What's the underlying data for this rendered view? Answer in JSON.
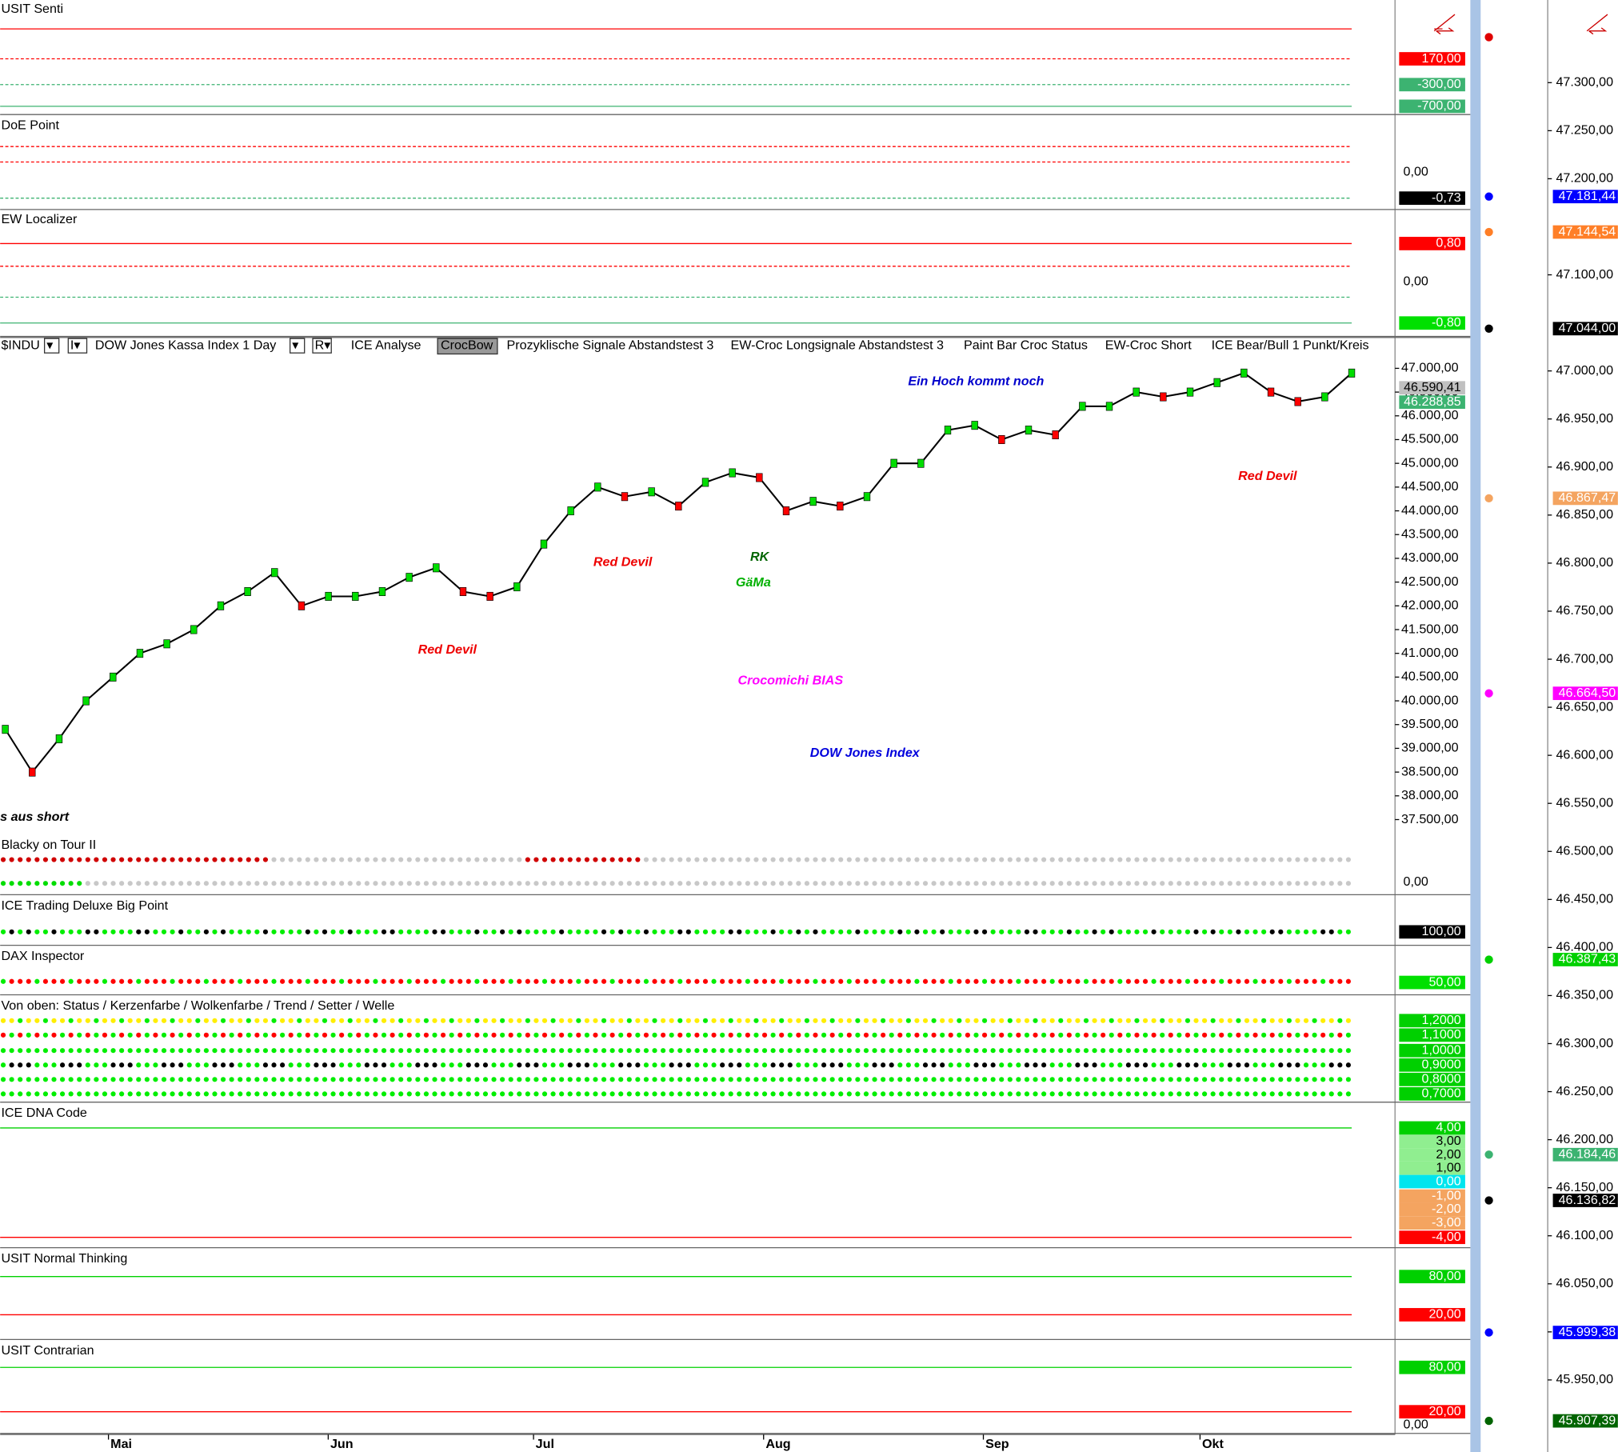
{
  "toolbar": [
    "$INDU",
    "▾",
    "I▾",
    "DOW Jones Kassa Index  1 Day",
    "▾",
    "R▾",
    "ICE Analyse",
    "CrocBow",
    "Prozyklische Signale Abstandstest 3",
    "EW-Croc Longsignale Abstandstest 3",
    "Paint Bar Croc Status",
    "EW-Croc Short",
    "ICE Bear/Bull 1 Punkt/Kreis"
  ],
  "panels": [
    {
      "title": "USIT Senti",
      "labels": [
        {
          "text": "170,00",
          "color": "#ff0000"
        },
        {
          "text": "-300,00",
          "color": "#3cb371"
        },
        {
          "text": "-700,00",
          "color": "#3cb371"
        }
      ]
    },
    {
      "title": "DoE Point",
      "labels": [
        {
          "text": "0,00"
        },
        {
          "text": "-0,73",
          "color": "#000000"
        }
      ]
    },
    {
      "title": "EW Localizer",
      "labels": [
        {
          "text": "0,80",
          "color": "#ff0000"
        },
        {
          "text": "0,00"
        },
        {
          "text": "-0,80",
          "color": "#00e000"
        }
      ]
    },
    {
      "title": "Blacky on Tour II",
      "labels": [
        {
          "text": "0,00"
        }
      ]
    },
    {
      "title": "ICE Trading Deluxe Big Point",
      "labels": [
        {
          "text": "100,00",
          "color": "#000000"
        }
      ]
    },
    {
      "title": "DAX Inspector",
      "labels": [
        {
          "text": "50,00",
          "color": "#00e000"
        }
      ]
    },
    {
      "title": "Von oben: Status / Kerzenfarbe / Wolkenfarbe / Trend / Setter / Welle",
      "labels": [
        {
          "text": "1,2000",
          "color": "#00d000"
        },
        {
          "text": "1,1000",
          "color": "#00d000"
        },
        {
          "text": "1,0000",
          "color": "#00d000"
        },
        {
          "text": "0,9000",
          "color": "#00d000"
        },
        {
          "text": "0,8000",
          "color": "#00d000"
        },
        {
          "text": "0,7000",
          "color": "#00d000"
        }
      ]
    },
    {
      "title": "ICE DNA Code",
      "labels": [
        {
          "text": "4,00",
          "color": "#00d000"
        },
        {
          "text": "3,00",
          "color": "#90ee90"
        },
        {
          "text": "2,00",
          "color": "#90ee90"
        },
        {
          "text": "1,00",
          "color": "#90ee90"
        },
        {
          "text": "0,00",
          "color": "#00e5ee"
        },
        {
          "text": "-1,00",
          "color": "#f4a460"
        },
        {
          "text": "-2,00",
          "color": "#f4a460"
        },
        {
          "text": "-3,00",
          "color": "#f4a460"
        },
        {
          "text": "-4,00",
          "color": "#ff0000"
        }
      ]
    },
    {
      "title": "USIT Normal Thinking",
      "labels": [
        {
          "text": "80,00",
          "color": "#00d000"
        },
        {
          "text": "20,00",
          "color": "#ff0000"
        }
      ]
    },
    {
      "title": "USIT Contrarian",
      "labels": [
        {
          "text": "80,00",
          "color": "#00d000"
        },
        {
          "text": "20,00",
          "color": "#ff0000"
        },
        {
          "text": "0,00"
        }
      ]
    }
  ],
  "main": {
    "type": "line",
    "color": "#000000",
    "values": [
      39400,
      38500,
      39200,
      40000,
      40500,
      41000,
      41200,
      41500,
      42000,
      42300,
      42700,
      42000,
      42200,
      42200,
      42300,
      42600,
      42800,
      42300,
      42200,
      42400,
      43300,
      44000,
      44500,
      44300,
      44400,
      44100,
      44600,
      44800,
      44700,
      44000,
      44200,
      44100,
      44300,
      45000,
      45000,
      45700,
      45800,
      45500,
      45700,
      45600,
      46200,
      46200,
      46500,
      46400,
      46500,
      46700,
      46900,
      46500,
      46300,
      46400,
      46900
    ],
    "ylim": [
      37200,
      47650
    ],
    "yticks": [
      {
        "value": 47000,
        "label": "47.000,00"
      },
      {
        "value": 46500,
        "label": "46.500,00"
      },
      {
        "value": 46000,
        "label": "46.000,00"
      },
      {
        "value": 45500,
        "label": "45.500,00"
      },
      {
        "value": 45000,
        "label": "45.000,00"
      },
      {
        "value": 44500,
        "label": "44.500,00"
      },
      {
        "value": 44000,
        "label": "44.000,00"
      },
      {
        "value": 43500,
        "label": "43.500,00"
      },
      {
        "value": 43000,
        "label": "43.000,00"
      },
      {
        "value": 42500,
        "label": "42.500,00"
      },
      {
        "value": 42000,
        "label": "42.000,00"
      },
      {
        "value": 41500,
        "label": "41.500,00"
      },
      {
        "value": 41000,
        "label": "41.000,00"
      },
      {
        "value": 40500,
        "label": "40.500,00"
      },
      {
        "value": 40000,
        "label": "40.000,00"
      },
      {
        "value": 39500,
        "label": "39.500,00"
      },
      {
        "value": 39000,
        "label": "39.000,00"
      },
      {
        "value": 38500,
        "label": "38.500,00"
      },
      {
        "value": 38000,
        "label": "38.000,00"
      },
      {
        "value": 37500,
        "label": "37.500,00"
      }
    ],
    "price_labels": [
      {
        "value": 46590.41,
        "label": "46.590,41",
        "color": "#c0c0c0"
      },
      {
        "value": 46288.85,
        "label": "46.288,85",
        "color": "#3cb371"
      }
    ],
    "annotations": [
      {
        "text": "Ein Hoch kommt noch",
        "color": "#0000cc"
      },
      {
        "text": "Red Devil",
        "color": "#ee0000"
      },
      {
        "text": "Red Devil",
        "color": "#ee0000"
      },
      {
        "text": "Red Devil",
        "color": "#ee0000"
      },
      {
        "text": "RK",
        "color": "#006400"
      },
      {
        "text": "GäMa",
        "color": "#00b000"
      },
      {
        "text": "Crocomichi BIAS",
        "color": "#ff00ff"
      },
      {
        "text": "DOW Jones Index",
        "color": "#0000dd"
      },
      {
        "text": "s aus short",
        "color": "#000000"
      }
    ]
  },
  "months": [
    "Mai",
    "Jun",
    "Jul",
    "Aug",
    "Sep",
    "Okt"
  ],
  "right_axis": {
    "ylim": [
      45875,
      47386
    ],
    "yticks": [
      {
        "value": 47300,
        "label": "47.300,00"
      },
      {
        "value": 47250,
        "label": "47.250,00"
      },
      {
        "value": 47200,
        "label": "47.200,00"
      },
      {
        "value": 47100,
        "label": "47.100,00"
      },
      {
        "value": 47000,
        "label": "47.000,00"
      },
      {
        "value": 46950,
        "label": "46.950,00"
      },
      {
        "value": 46900,
        "label": "46.900,00"
      },
      {
        "value": 46850,
        "label": "46.850,00"
      },
      {
        "value": 46800,
        "label": "46.800,00"
      },
      {
        "value": 46750,
        "label": "46.750,00"
      },
      {
        "value": 46700,
        "label": "46.700,00"
      },
      {
        "value": 46650,
        "label": "46.650,00"
      },
      {
        "value": 46600,
        "label": "46.600,00"
      },
      {
        "value": 46550,
        "label": "46.550,00"
      },
      {
        "value": 46500,
        "label": "46.500,00"
      },
      {
        "value": 46450,
        "label": "46.450,00"
      },
      {
        "value": 46400,
        "label": "46.400,00"
      },
      {
        "value": 46350,
        "label": "46.350,00"
      },
      {
        "value": 46300,
        "label": "46.300,00"
      },
      {
        "value": 46250,
        "label": "46.250,00"
      },
      {
        "value": 46200,
        "label": "46.200,00"
      },
      {
        "value": 46150,
        "label": "46.150,00"
      },
      {
        "value": 46100,
        "label": "46.100,00"
      },
      {
        "value": 46050,
        "label": "46.050,00"
      },
      {
        "value": 46000,
        "label": "46.000,00"
      },
      {
        "value": 45950,
        "label": "45.950,00"
      }
    ],
    "markers": [
      {
        "value": 47181.44,
        "label": "47.181,44",
        "color": "#0000ff"
      },
      {
        "value": 47144.54,
        "label": "47.144,54",
        "color": "#ff7f27"
      },
      {
        "value": 47044,
        "label": "47.044,00",
        "color": "#000000"
      },
      {
        "value": 46867.47,
        "label": "46.867,47",
        "color": "#f4a460"
      },
      {
        "value": 46664.5,
        "label": "46.664,50",
        "color": "#ff00ff"
      },
      {
        "value": 46387.43,
        "label": "46.387,43",
        "color": "#00d000"
      },
      {
        "value": 46184.46,
        "label": "46.184,46",
        "color": "#3cb371"
      },
      {
        "value": 46136.82,
        "label": "46.136,82",
        "color": "#000000"
      },
      {
        "value": 45999.38,
        "label": "45.999,38",
        "color": "#0000ff"
      },
      {
        "value": 45907.39,
        "label": "45.907,39",
        "color": "#006400"
      }
    ]
  }
}
